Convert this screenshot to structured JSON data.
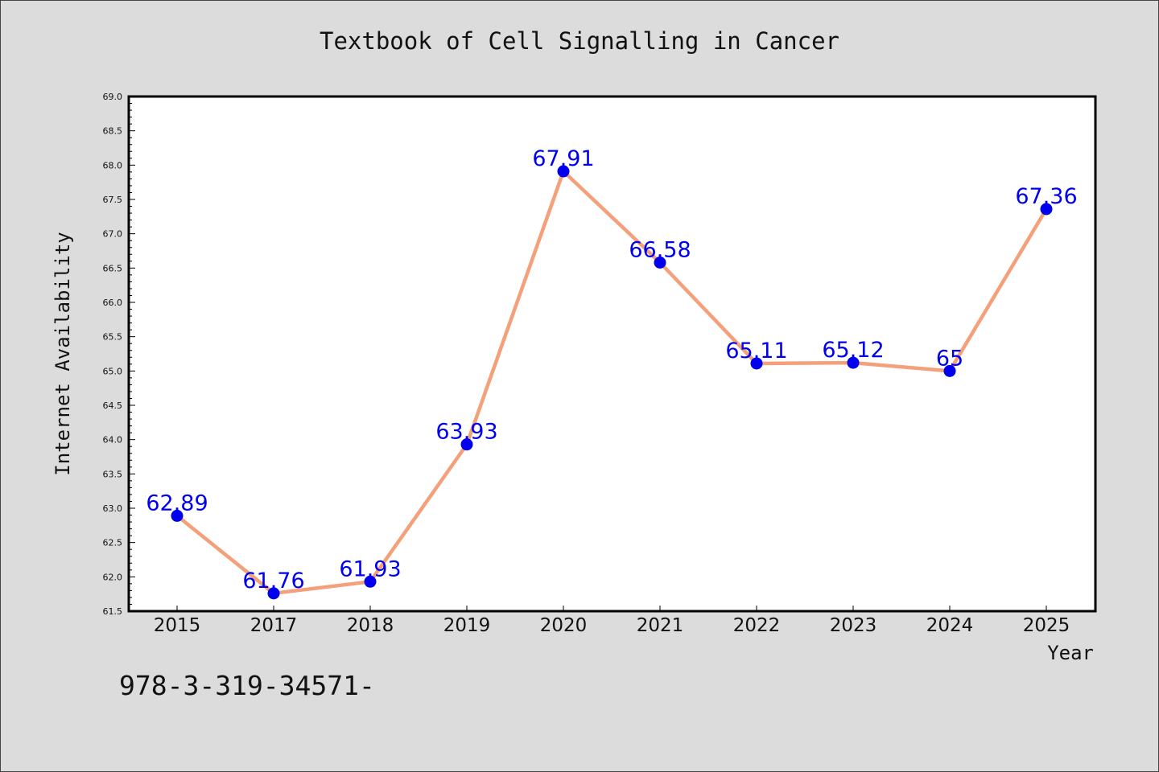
{
  "header": {
    "title": "Textbook of Cell Signalling in Cancer"
  },
  "footer": {
    "isbn_text": "978-3-319-34571-"
  },
  "chart_data": {
    "type": "line",
    "title": "Textbook of Cell Signalling in Cancer",
    "xlabel": "Year",
    "ylabel": "Internet Availability",
    "categories": [
      "2015",
      "2017",
      "2018",
      "2019",
      "2020",
      "2021",
      "2022",
      "2023",
      "2024",
      "2025"
    ],
    "series": [
      {
        "values": [
          62.89,
          61.76,
          61.93,
          63.93,
          67.91,
          66.58,
          65.11,
          65.12,
          65,
          67.36
        ],
        "labels": [
          "62.89",
          "61.76",
          "61.93",
          "63.93",
          "67.91",
          "66.58",
          "65.11",
          "65.12",
          "65",
          "67.36"
        ],
        "line_color": "#f4a07a",
        "marker_color": "#0000ee",
        "label_color": "#0000ee"
      }
    ],
    "ylim": [
      61.5,
      69.0
    ],
    "yticks": [
      "61.5",
      "62.0",
      "62.5",
      "63.0",
      "63.5",
      "64.0",
      "64.5",
      "65.0",
      "65.5",
      "66.0",
      "66.5",
      "67.0",
      "67.5",
      "68.0",
      "68.5",
      "69.0"
    ],
    "grid": false,
    "legend": "none",
    "colors": {
      "background": "#dcdcdc",
      "plot_background": "#ffffff",
      "axis": "#000000"
    }
  }
}
